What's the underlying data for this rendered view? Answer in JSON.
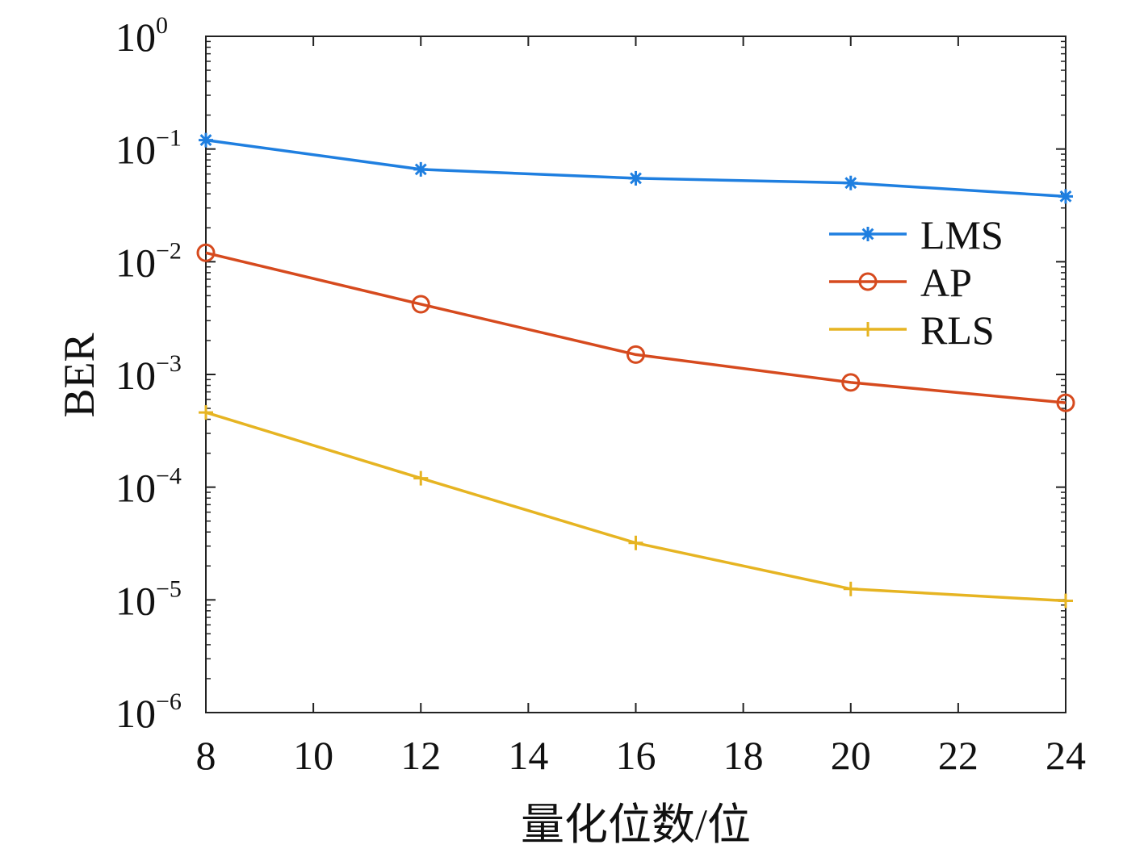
{
  "chart_data": {
    "type": "line",
    "title": "",
    "xlabel": "量化位数/位",
    "ylabel": "BER",
    "x": [
      8,
      12,
      16,
      20,
      24
    ],
    "xlim": [
      8,
      24
    ],
    "xticks": [
      "8",
      "10",
      "12",
      "14",
      "16",
      "18",
      "20",
      "22",
      "24"
    ],
    "yscale": "log",
    "ylim": [
      1e-06,
      1
    ],
    "yticks": [
      {
        "base": "10",
        "exp": "0",
        "value": 1
      },
      {
        "base": "10",
        "exp": "−1",
        "value": 0.1
      },
      {
        "base": "10",
        "exp": "−2",
        "value": 0.01
      },
      {
        "base": "10",
        "exp": "−3",
        "value": 0.001
      },
      {
        "base": "10",
        "exp": "−4",
        "value": 0.0001
      },
      {
        "base": "10",
        "exp": "−5",
        "value": 1e-05
      },
      {
        "base": "10",
        "exp": "−6",
        "value": 1e-06
      }
    ],
    "grid": false,
    "legend_position": "right",
    "series": [
      {
        "name": "LMS",
        "marker": "asterisk",
        "color": "#1f7fe0",
        "values": [
          0.12,
          0.066,
          0.055,
          0.05,
          0.038
        ]
      },
      {
        "name": "AP",
        "marker": "circle",
        "color": "#d64a1e",
        "values": [
          0.012,
          0.0042,
          0.0015,
          0.00085,
          0.00056
        ]
      },
      {
        "name": "RLS",
        "marker": "plus",
        "color": "#e6b422",
        "values": [
          0.00046,
          0.00012,
          3.2e-05,
          1.25e-05,
          9.8e-06
        ]
      }
    ]
  }
}
